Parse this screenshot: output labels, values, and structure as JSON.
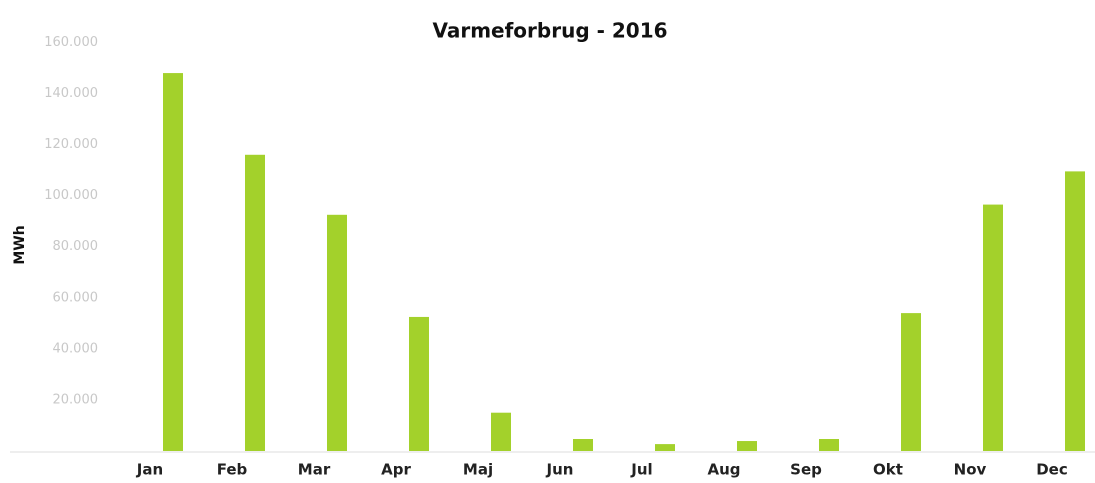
{
  "chart_data": {
    "type": "bar",
    "title": "Varmeforbrug - 2016",
    "ylabel": "MWh",
    "categories": [
      "Jan",
      "Feb",
      "Mar",
      "Apr",
      "Maj",
      "Jun",
      "Jul",
      "Aug",
      "Sep",
      "Okt",
      "Nov",
      "Dec"
    ],
    "values": [
      148000,
      116000,
      92500,
      52500,
      15000,
      4700,
      2700,
      3900,
      4700,
      54000,
      96500,
      109500
    ],
    "color": "#a3d12b",
    "ylim": [
      0,
      168000
    ],
    "yticks": [
      {
        "value": 20000,
        "label": "20.000"
      },
      {
        "value": 40000,
        "label": "40.000"
      },
      {
        "value": 60000,
        "label": "60.000"
      },
      {
        "value": 80000,
        "label": "80.000"
      },
      {
        "value": 100000,
        "label": "100.000"
      },
      {
        "value": 120000,
        "label": "120.000"
      },
      {
        "value": 140000,
        "label": "140.000"
      },
      {
        "value": 160000,
        "label": "160.000"
      }
    ],
    "grid": false
  }
}
